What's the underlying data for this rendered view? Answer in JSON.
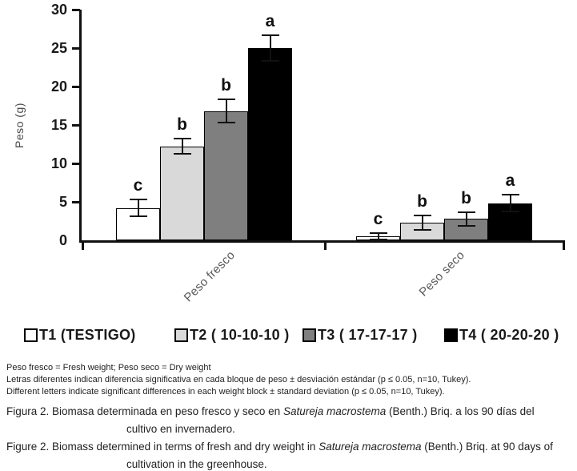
{
  "chart_data": {
    "type": "bar",
    "title": "",
    "xlabel": "",
    "ylabel": "Peso (g)",
    "ylim": [
      0,
      30
    ],
    "yticks": [
      0,
      5,
      10,
      15,
      20,
      25,
      30
    ],
    "categories": [
      "Peso fresco",
      "Peso seco"
    ],
    "series": [
      {
        "name": "T1 (TESTIGO)",
        "color": "#ffffff",
        "values": [
          4.2,
          0.5
        ],
        "errors": [
          1.2,
          0.5
        ],
        "letters": [
          "c",
          "c"
        ]
      },
      {
        "name": "T2 ( 10-10-10 )",
        "color": "#d9d9d9",
        "values": [
          12.2,
          2.3
        ],
        "errors": [
          1.1,
          1.0
        ],
        "letters": [
          "b",
          "b"
        ]
      },
      {
        "name": "T3 ( 17-17-17 )",
        "color": "#7f7f7f",
        "values": [
          16.8,
          2.8
        ],
        "errors": [
          1.6,
          1.0
        ],
        "letters": [
          "b",
          "b"
        ]
      },
      {
        "name": "T4 ( 20-20-20 )",
        "color": "#000000",
        "values": [
          25.0,
          4.8
        ],
        "errors": [
          1.8,
          1.2
        ],
        "letters": [
          "a",
          "a"
        ]
      }
    ],
    "grid": false,
    "legend_position": "bottom",
    "axis_color": "#111111"
  },
  "footnotes": [
    "Peso fresco = Fresh weight; Peso seco = Dry weight",
    "Letras diferentes indican diferencia significativa en cada bloque de peso ± desviación estándar (p ≤ 0.05, n=10, Tukey).",
    "Different letters indicate significant differences in each weight block ± standard deviation (p ≤ 0.05, n=10, Tukey)."
  ],
  "captions": [
    {
      "line1_pre": "Figura 2. Biomasa determinada en peso fresco y seco en ",
      "italic": "Satureja macrostema",
      "line1_post": " (Benth.) Briq. a los 90 días del",
      "line2": "cultivo en invernadero."
    },
    {
      "line1_pre": "Figure 2. Biomass determined in terms of fresh and dry weight in ",
      "italic": "Satureja macrostema",
      "line1_post": " (Benth.) Briq. at 90 days of",
      "line2": "cultivation in the greenhouse."
    }
  ]
}
